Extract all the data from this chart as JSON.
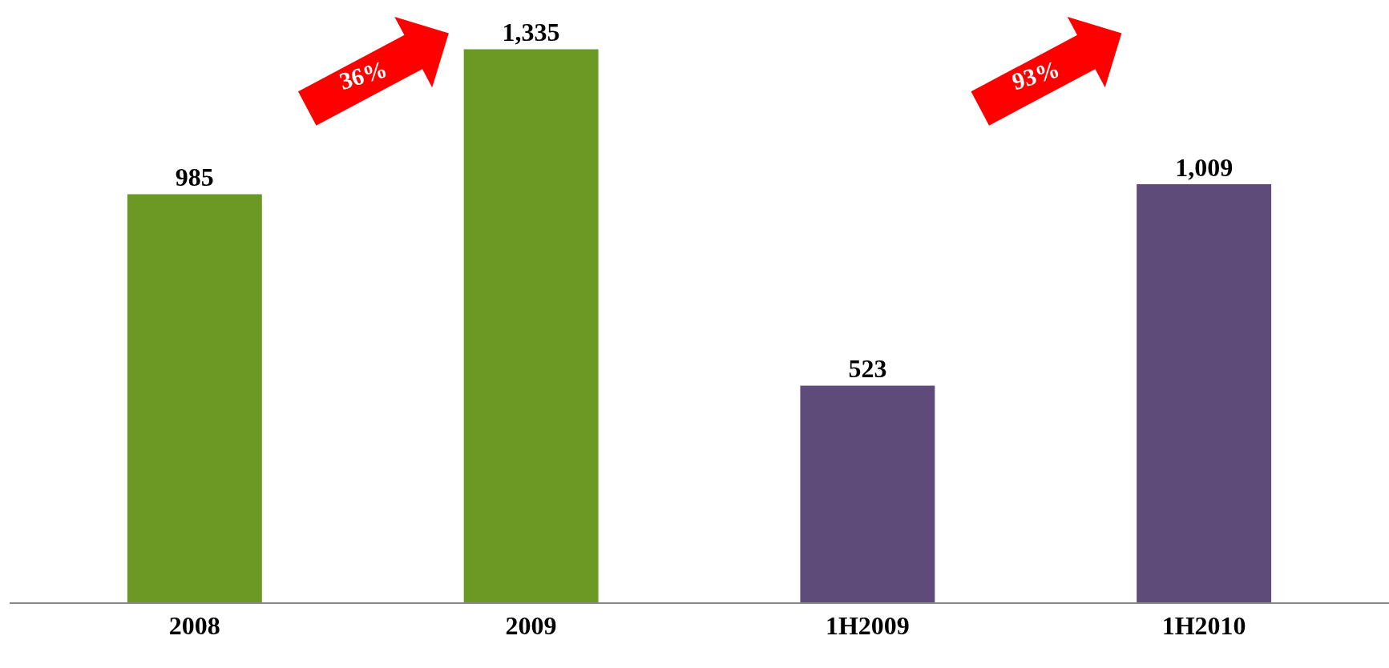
{
  "chart_data": {
    "type": "bar",
    "categories": [
      "2008",
      "2009",
      "1H2009",
      "1H2010"
    ],
    "values": [
      985,
      1335,
      523,
      1009
    ],
    "colors": [
      "#6b9a24",
      "#6b9a24",
      "#5f4b7a",
      "#5f4b7a"
    ],
    "value_labels": [
      "985",
      "1,335",
      "523",
      "1,009"
    ],
    "annotations": [
      "36%",
      "93%"
    ]
  }
}
